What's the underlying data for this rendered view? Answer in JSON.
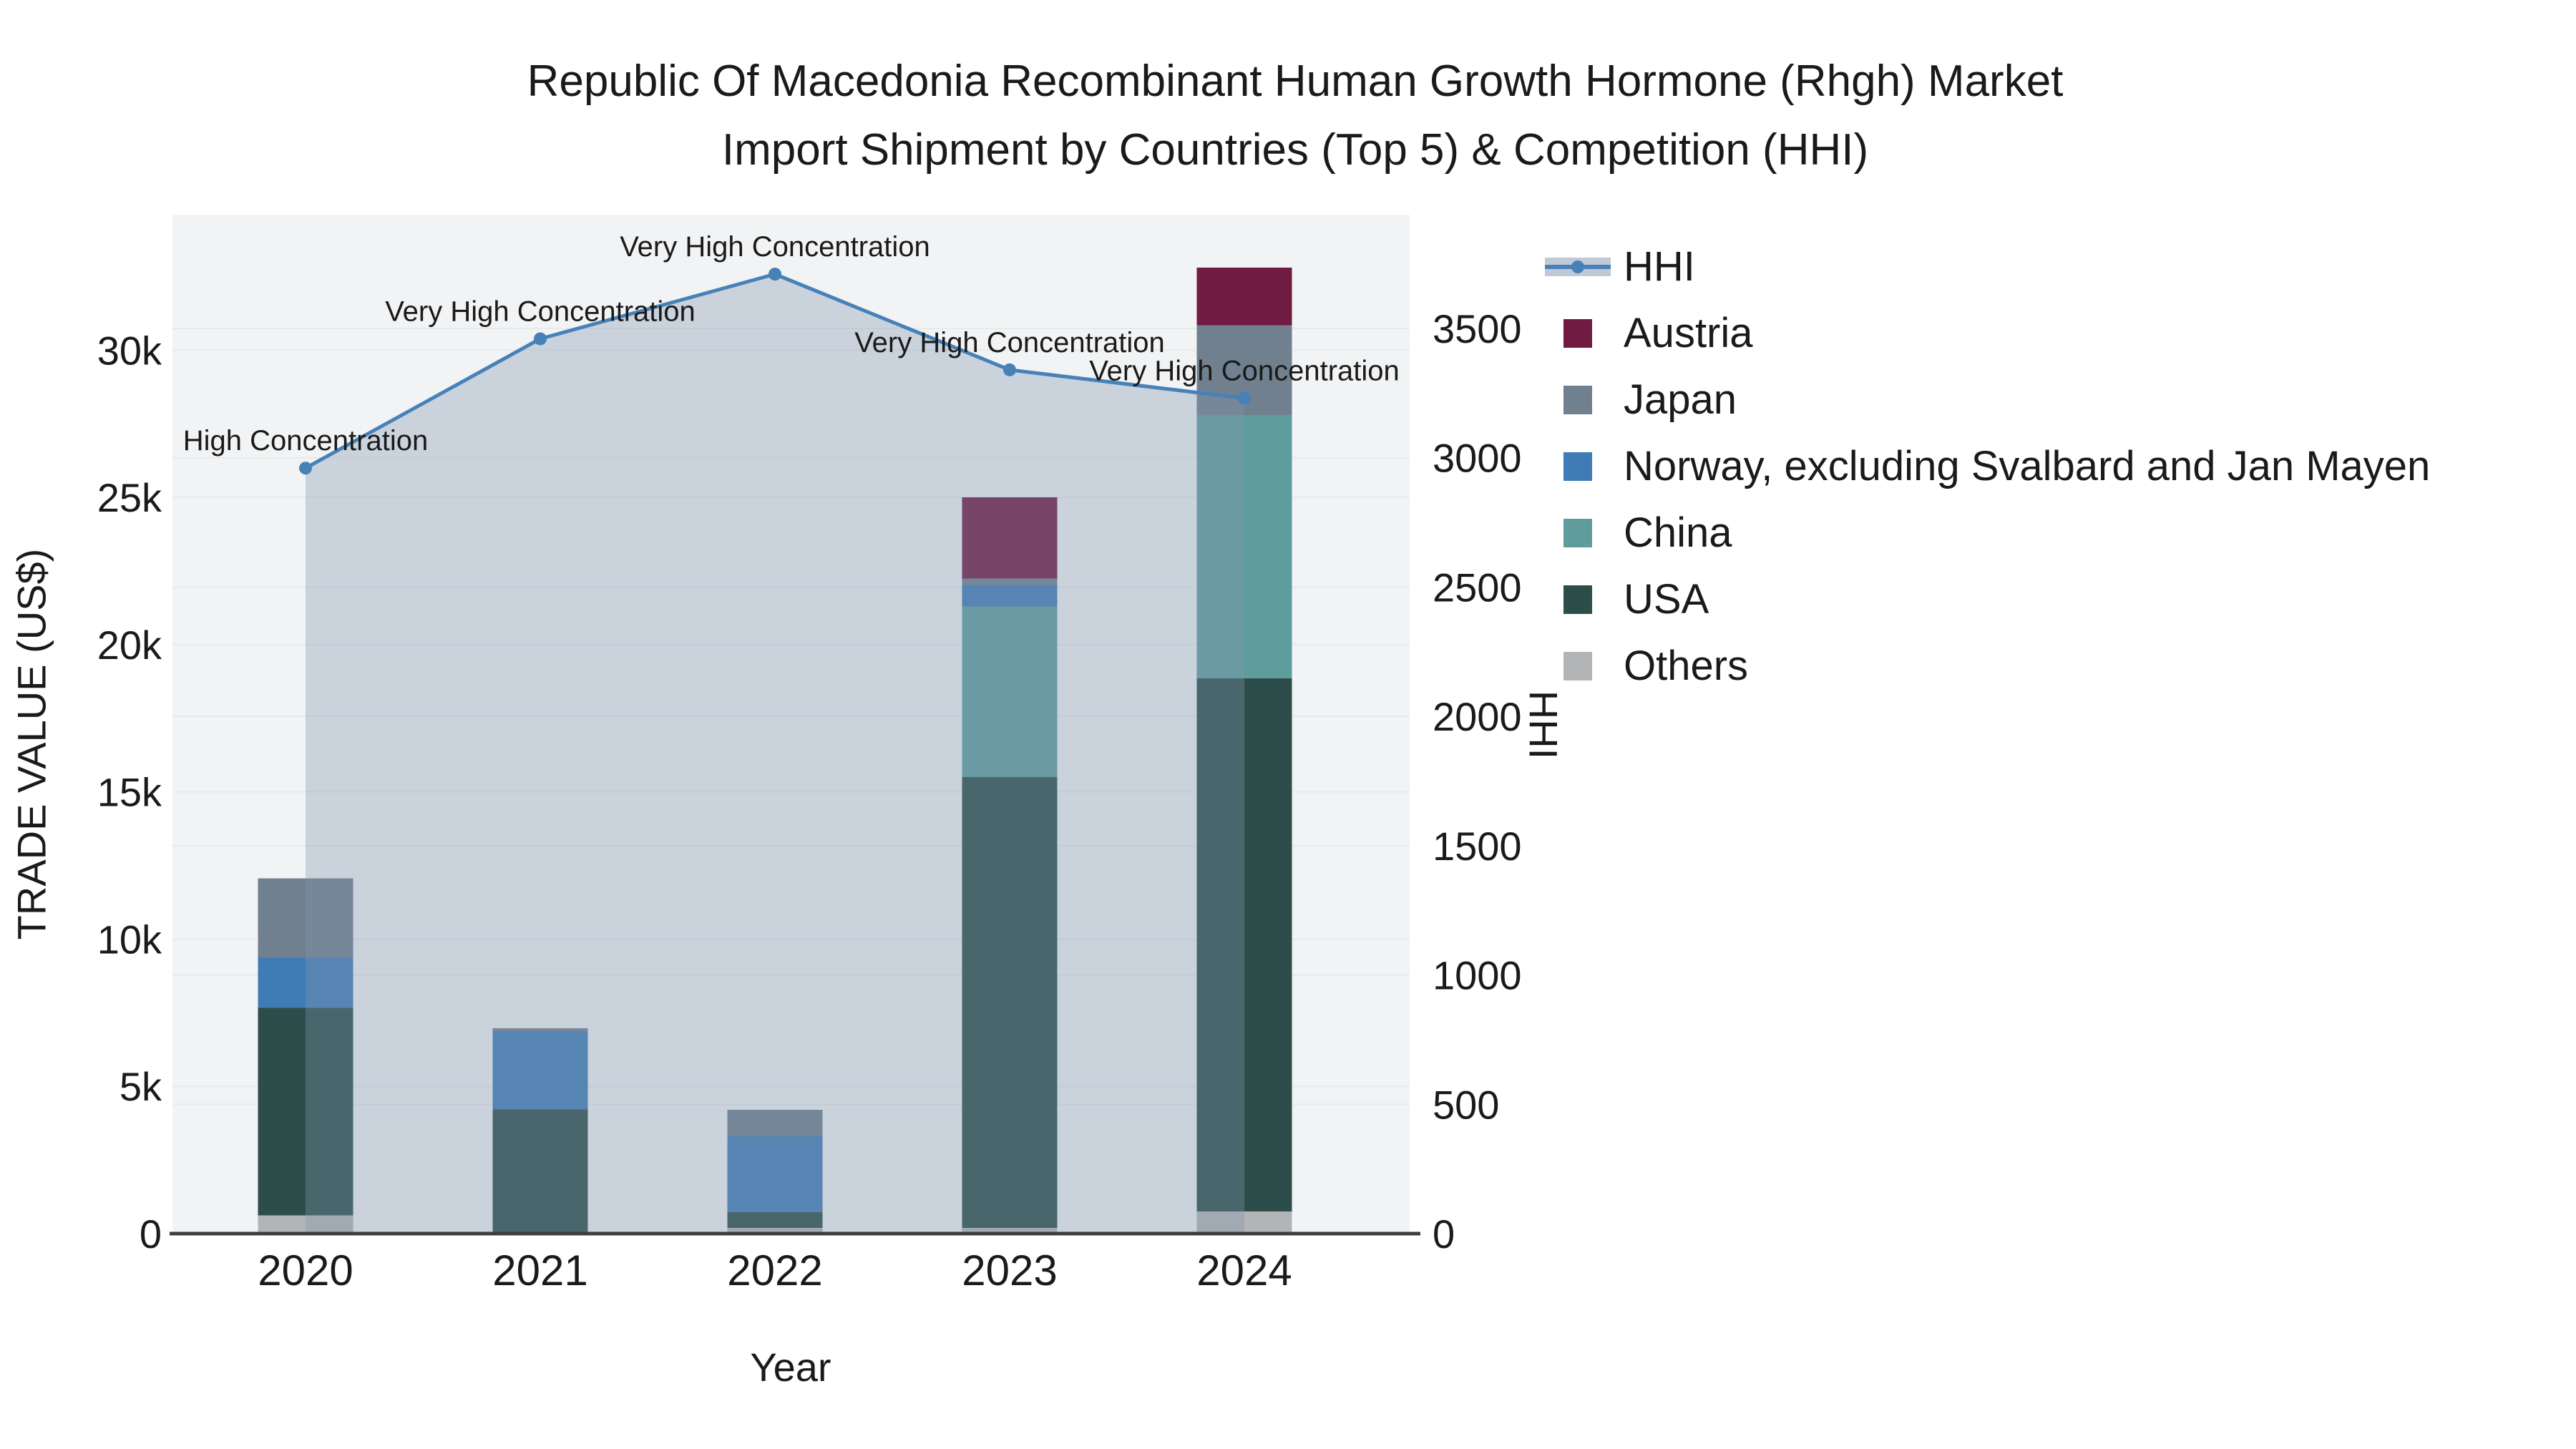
{
  "title": {
    "line1": "Republic Of Macedonia Recombinant Human Growth Hormone (Rhgh) Market",
    "line2": "Import Shipment by Countries (Top 5) & Competition (HHI)"
  },
  "axes": {
    "x": {
      "title": "Year",
      "ticks": [
        "2020",
        "2021",
        "2022",
        "2023",
        "2024"
      ]
    },
    "y_left": {
      "title": "TRADE VALUE (US$)",
      "ticks": [
        "0",
        "5k",
        "10k",
        "15k",
        "20k",
        "25k",
        "30k"
      ],
      "tick_values": [
        0,
        5000,
        10000,
        15000,
        20000,
        25000,
        30000
      ]
    },
    "y_right": {
      "title": "HHI",
      "ticks": [
        "0",
        "500",
        "1000",
        "1500",
        "2000",
        "2500",
        "3000",
        "3500"
      ],
      "tick_values": [
        0,
        500,
        1000,
        1500,
        2000,
        2500,
        3000,
        3500
      ]
    }
  },
  "legend": {
    "items": [
      {
        "label": "HHI",
        "type": "line",
        "color": "#4681b8",
        "fill": "rgba(130,150,175,0.5)"
      },
      {
        "label": "Austria",
        "type": "square",
        "color": "#701b42"
      },
      {
        "label": "Japan",
        "type": "square",
        "color": "#71808f"
      },
      {
        "label": "Norway, excluding Svalbard and Jan Mayen",
        "type": "square",
        "color": "#3f7cb6"
      },
      {
        "label": "China",
        "type": "square",
        "color": "#5f9d9d"
      },
      {
        "label": "USA",
        "type": "square",
        "color": "#2d4d4b"
      },
      {
        "label": "Others",
        "type": "square",
        "color": "#b2b4b6"
      }
    ]
  },
  "chart_data": {
    "type": "bar+line",
    "categories": [
      "2020",
      "2021",
      "2022",
      "2023",
      "2024"
    ],
    "bar_value_unit": "US$",
    "stacked": true,
    "series": [
      {
        "name": "Austria",
        "color": "#701b42",
        "values": [
          0,
          0,
          0,
          2750,
          1950
        ]
      },
      {
        "name": "Japan",
        "color": "#71808f",
        "values": [
          2690,
          100,
          900,
          220,
          3050
        ]
      },
      {
        "name": "Norway, excluding Svalbard and Jan Mayen",
        "color": "#3f7cb6",
        "values": [
          1700,
          2650,
          2570,
          730,
          0
        ]
      },
      {
        "name": "China",
        "color": "#5f9d9d",
        "values": [
          0,
          0,
          0,
          5800,
          8950
        ]
      },
      {
        "name": "USA",
        "color": "#2d4d4b",
        "values": [
          7050,
          4220,
          540,
          15300,
          18100
        ]
      },
      {
        "name": "Others",
        "color": "#b2b4b6",
        "values": [
          620,
          0,
          190,
          200,
          750
        ]
      }
    ],
    "bar_totals": [
      12060,
      6970,
      4200,
      25000,
      32800
    ],
    "line": {
      "name": "HHI",
      "color": "#4681b8",
      "fill_color": "rgba(130,150,175,0.35)",
      "values": [
        2960,
        3460,
        3710,
        3340,
        3230
      ],
      "annotations": [
        "High Concentration",
        "Very High Concentration",
        "Very High Concentration",
        "Very High Concentration",
        "Very High Concentration"
      ]
    },
    "xlabel": "Year",
    "ylabel_left": "TRADE VALUE (US$)",
    "ylabel_right": "HHI",
    "y_left_range": [
      0,
      34600
    ],
    "y_right_range": [
      0,
      3940
    ],
    "grid": true,
    "legend_position": "right"
  },
  "colors": {
    "plot_bg": "#f2f3f4",
    "grid": "#e7e9eb",
    "axis_line": "#3d3d3d",
    "text": "#1a1a1a"
  }
}
